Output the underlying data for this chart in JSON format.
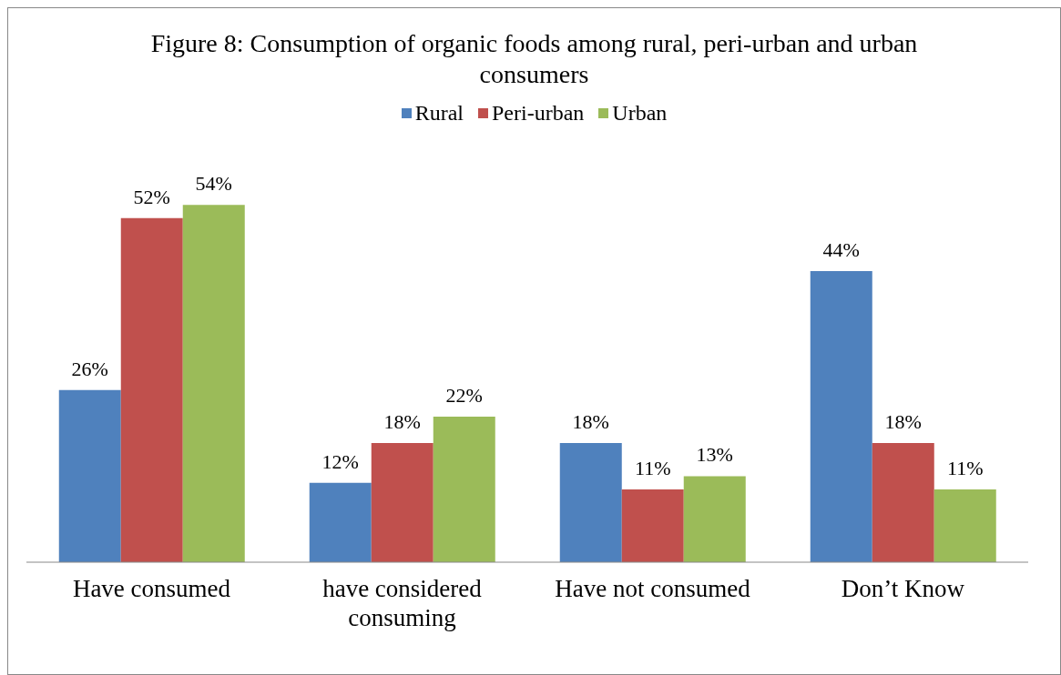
{
  "chart_data": {
    "type": "bar",
    "title": "Figure 8: Consumption of organic foods among rural, peri-urban and urban consumers",
    "categories": [
      "Have consumed",
      "have considered consuming",
      "Have not consumed",
      "Don’t Know"
    ],
    "series": [
      {
        "name": "Rural",
        "color": "#4f81bd",
        "values": [
          26,
          12,
          18,
          44
        ],
        "value_labels": [
          "26%",
          "12%",
          "18%",
          "44%"
        ]
      },
      {
        "name": "Peri-urban",
        "color": "#c0504d",
        "values": [
          52,
          18,
          11,
          18
        ],
        "value_labels": [
          "52%",
          "18%",
          "11%",
          "18%"
        ]
      },
      {
        "name": "Urban",
        "color": "#9bbb59",
        "values": [
          54,
          22,
          13,
          11
        ],
        "value_labels": [
          "54%",
          "22%",
          "13%",
          "11%"
        ]
      }
    ],
    "legend": "top",
    "grid": false
  }
}
